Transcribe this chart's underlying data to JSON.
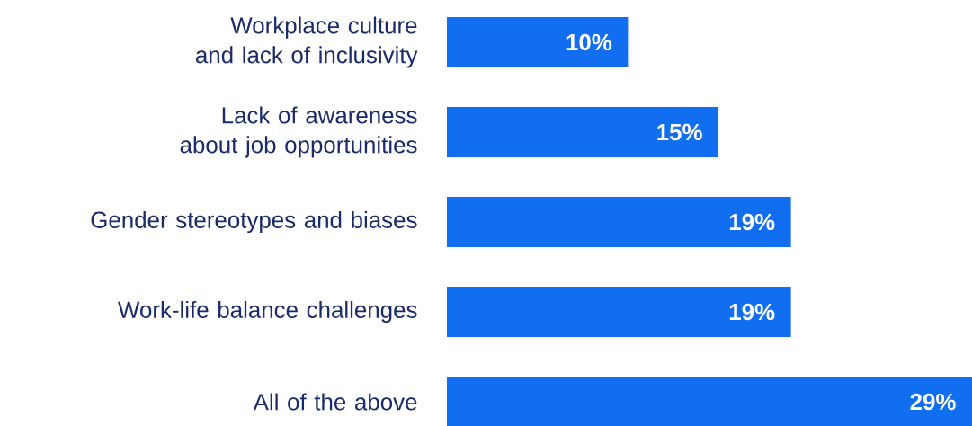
{
  "chart_data": {
    "type": "bar",
    "orientation": "horizontal",
    "categories": [
      "Workplace culture and lack of inclusivity",
      "Lack of awareness about job opportunities",
      "Gender stereotypes and biases",
      "Work-life balance challenges",
      "All of the above"
    ],
    "values": [
      10,
      15,
      19,
      19,
      29
    ],
    "value_labels": [
      "10%",
      "15%",
      "19%",
      "19%",
      "29%"
    ],
    "color": "#116ef0",
    "xlim": [
      0,
      29
    ]
  }
}
